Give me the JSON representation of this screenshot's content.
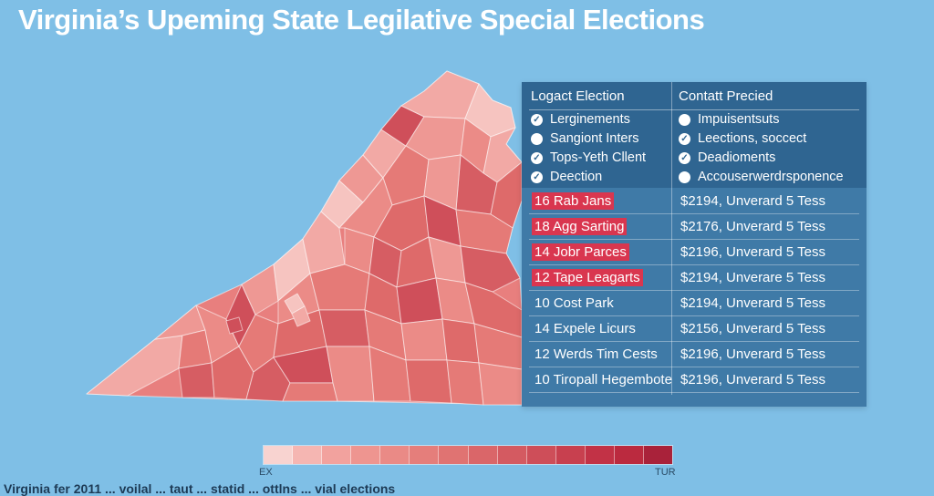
{
  "title": "Virginia’s Upeming State Legilative Special Elections",
  "map": {
    "name": "virginia-county-map",
    "colors": [
      "#f6c4c0",
      "#f2a9a5",
      "#ee9894",
      "#eb8b87",
      "#e57a77",
      "#de6a6a",
      "#d65d63",
      "#cf4f5a"
    ]
  },
  "panel": {
    "col_left_header": "Logact Election",
    "col_right_header": "Contatt Precied",
    "bullets_left": [
      {
        "icon": "check-circle-icon",
        "label": "Lerginements"
      },
      {
        "icon": "dot-circle-icon",
        "label": "Sangiont Inters"
      },
      {
        "icon": "check-circle-icon",
        "label": "Tops-Yeth Cllent"
      },
      {
        "icon": "check-circle-icon",
        "label": "Deection"
      }
    ],
    "bullets_right": [
      {
        "icon": "dot-circle-icon",
        "label": "Impuisentsuts"
      },
      {
        "icon": "check-circle-icon",
        "label": "Leections, soccect"
      },
      {
        "icon": "check-circle-icon",
        "label": "Deadioments"
      },
      {
        "icon": "dot-circle-icon",
        "label": "Accouserwerdrsponence"
      }
    ],
    "rows": [
      {
        "left": "16 Rab Jans",
        "right": "$2194, Unverard 5 Tess",
        "highlight": true
      },
      {
        "left": "18 Agg Sarting",
        "right": "$2176, Unverard 5 Tess",
        "highlight": true
      },
      {
        "left": "14 Jobr Parces",
        "right": "$2196, Unverard 5 Tess",
        "highlight": true
      },
      {
        "left": "12 Tape Leagarts",
        "right": "$2194, Unverare 5 Tess",
        "highlight": true
      },
      {
        "left": "10 Cost Park",
        "right": "$2194, Unverard 5 Tess",
        "highlight": false
      },
      {
        "left": "14 Expele Licurs",
        "right": "$2156, Unverard 5 Tess",
        "highlight": false
      },
      {
        "left": "12 Werds Tim Cests",
        "right": "$2196, Unverard 5 Tess",
        "highlight": false
      },
      {
        "left": "10 Tiropall Hegembote",
        "right": "$2196, Unverard 5 Tess",
        "highlight": false
      }
    ]
  },
  "legend": {
    "min_label": "EX",
    "max_label": "TUR",
    "colors": [
      "#f8d3d0",
      "#f5b6b2",
      "#f2a29e",
      "#ee9590",
      "#ea8a86",
      "#e57e7b",
      "#e07372",
      "#da6669",
      "#d45a61",
      "#ce4e59",
      "#c8404f",
      "#c23246",
      "#bb2a3f",
      "#a9223a"
    ]
  },
  "footer_text": "Virginia fer 2011 ... voilal ... taut ... statid ... ottlns ... vial elections"
}
